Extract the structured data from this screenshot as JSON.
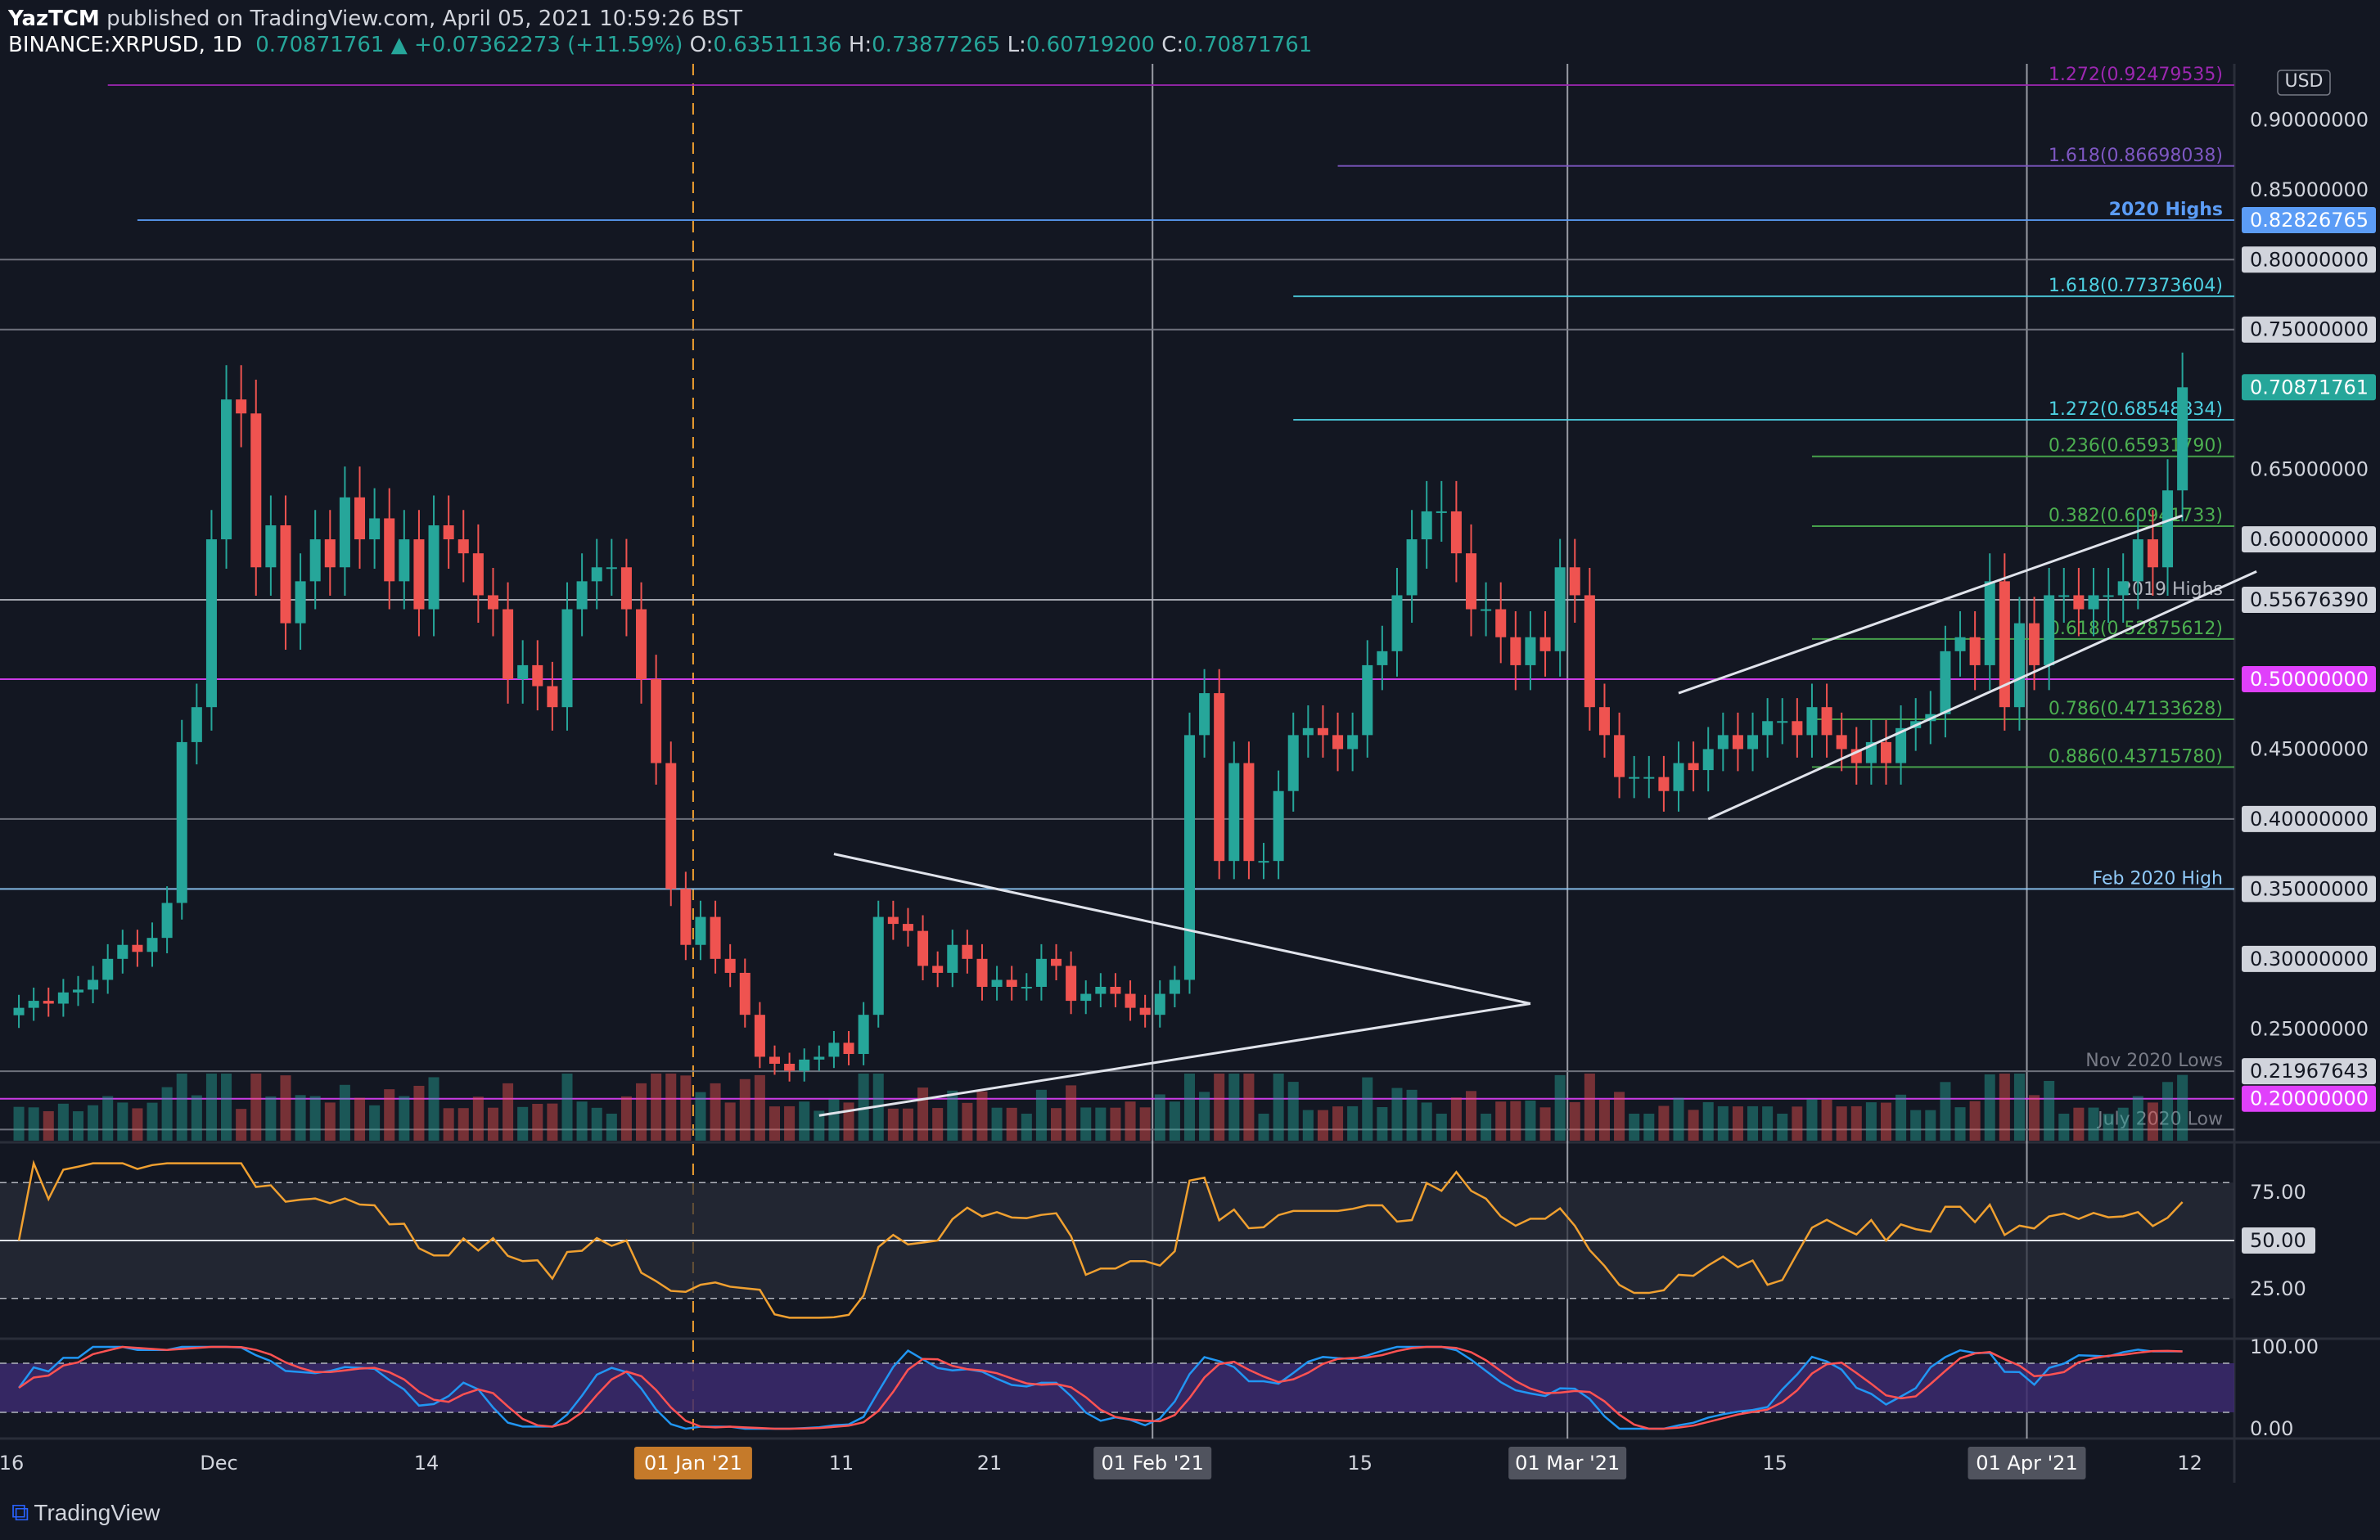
{
  "header": {
    "publisher": "YazTCM",
    "published_text": " published on TradingView.com, April 05, 2021 10:59:26 BST",
    "symbol": "BINANCE:XRPUSD, 1D",
    "last": "0.70871761",
    "change": "▲ +0.07362273 (+11.59%)",
    "o_label": "O:",
    "o": "0.63511136",
    "h_label": "H:",
    "h": "0.73877265",
    "l_label": "L:",
    "l": "0.60719200",
    "c_label": "C:",
    "c": "0.70871761"
  },
  "footer": {
    "brand": "TradingView",
    "logo_icon": "tradingview-logo-icon"
  },
  "colors": {
    "bg": "#131722",
    "up": "#26a69a",
    "down": "#ef5350",
    "rsi": "#f0a030",
    "stoch_k": "#2196f3",
    "stoch_d": "#ff5252"
  },
  "chart_data": {
    "type": "candlestick",
    "currency_label": "USD",
    "price_range": [
      0.17,
      0.94
    ],
    "price_ticks": [
      "0.25000000",
      "0.30000000",
      "0.45000000",
      "0.65000000",
      "0.85000000",
      "0.90000000"
    ],
    "x_labels": [
      {
        "label": "16",
        "day": 0
      },
      {
        "label": "Dec",
        "day": 14
      },
      {
        "label": "14",
        "day": 28
      },
      {
        "label": "01 Jan '21",
        "day": 46,
        "highlight": "orange"
      },
      {
        "label": "11",
        "day": 56
      },
      {
        "label": "21",
        "day": 66
      },
      {
        "label": "01 Feb '21",
        "day": 77,
        "highlight": "grey"
      },
      {
        "label": "15",
        "day": 91
      },
      {
        "label": "01 Mar '21",
        "day": 105,
        "highlight": "grey"
      },
      {
        "label": "15",
        "day": 119
      },
      {
        "label": "01 Apr '21",
        "day": 136,
        "highlight": "grey"
      },
      {
        "label": "12",
        "day": 147
      }
    ],
    "levels": [
      {
        "price": 0.92479535,
        "label": "1.272(0.92479535)",
        "color": "#9c27b0",
        "start": 6
      },
      {
        "price": 0.86698038,
        "label": "1.618(0.86698038)",
        "color": "#7e57c2",
        "start": 89
      },
      {
        "price": 0.82826765,
        "label": "2020 Highs",
        "color": "#5b9cf6",
        "start": 8,
        "tag": "0.82826765",
        "tagbg": "#5b9cf6"
      },
      {
        "price": 0.8,
        "label": "",
        "color": "#787b86",
        "start": 0,
        "tag": "0.80000000",
        "tagbg": "#d1d4dc"
      },
      {
        "price": 0.77373604,
        "label": "1.618(0.77373604)",
        "color": "#4dd0e1",
        "start": 86
      },
      {
        "price": 0.75,
        "label": "",
        "color": "#787b86",
        "start": 0,
        "tag": "0.75000000",
        "tagbg": "#d1d4dc"
      },
      {
        "price": 0.68548834,
        "label": "1.272(0.68548834)",
        "color": "#4dd0e1",
        "start": 86
      },
      {
        "price": 0.6593179,
        "label": "0.236(0.65931790)",
        "color": "#4caf50",
        "start": 121
      },
      {
        "price": 0.60941733,
        "label": "0.382(0.60941733)",
        "color": "#4caf50",
        "start": 121
      },
      {
        "price": 0.6,
        "label": "",
        "color": "none",
        "start": 0,
        "tag": "0.60000000",
        "tagbg": "#d1d4dc"
      },
      {
        "price": 0.5567639,
        "label": "2019 Highs",
        "color": "#b2b5be",
        "start": 0,
        "tag": "0.55676390",
        "tagbg": "#d1d4dc"
      },
      {
        "price": 0.52875612,
        "label": "0.618(0.52875612)",
        "color": "#4caf50",
        "start": 121
      },
      {
        "price": 0.5,
        "label": "",
        "color": "#e040fb",
        "start": 0,
        "tag": "0.50000000",
        "tagbg": "#e040fb"
      },
      {
        "price": 0.47133628,
        "label": "0.786(0.47133628)",
        "color": "#4caf50",
        "start": 121
      },
      {
        "price": 0.4371578,
        "label": "0.886(0.43715780)",
        "color": "#4caf50",
        "start": 121
      },
      {
        "price": 0.4,
        "label": "",
        "color": "#787b86",
        "start": 0,
        "tag": "0.40000000",
        "tagbg": "#d1d4dc"
      },
      {
        "price": 0.35,
        "label": "Feb 2020 High",
        "color": "#90caf9",
        "start": 0,
        "tag": "0.35000000",
        "tagbg": "#d1d4dc"
      },
      {
        "price": 0.3,
        "label": "",
        "color": "none",
        "start": 0,
        "tag": "0.30000000",
        "tagbg": "#d1d4dc"
      },
      {
        "price": 0.21967643,
        "label": "Nov 2020 Lows",
        "color": "#787b86",
        "start": 0,
        "tag": "0.21967643",
        "tagbg": "#d1d4dc"
      },
      {
        "price": 0.2,
        "label": "",
        "color": "#e040fb",
        "start": 0,
        "tag": "0.20000000",
        "tagbg": "#e040fb"
      },
      {
        "price": 0.178,
        "label": "July 2020 Low",
        "color": "#787b86",
        "start": 0
      }
    ],
    "last_price_tag": "0.70871761",
    "close": [
      0.265,
      0.27,
      0.268,
      0.276,
      0.278,
      0.285,
      0.3,
      0.31,
      0.305,
      0.315,
      0.34,
      0.455,
      0.48,
      0.6,
      0.7,
      0.69,
      0.58,
      0.61,
      0.54,
      0.57,
      0.6,
      0.58,
      0.63,
      0.6,
      0.615,
      0.57,
      0.6,
      0.55,
      0.61,
      0.6,
      0.59,
      0.56,
      0.55,
      0.5,
      0.51,
      0.495,
      0.48,
      0.55,
      0.57,
      0.58,
      0.58,
      0.55,
      0.5,
      0.44,
      0.35,
      0.31,
      0.33,
      0.3,
      0.29,
      0.26,
      0.23,
      0.225,
      0.22,
      0.228,
      0.23,
      0.24,
      0.232,
      0.26,
      0.33,
      0.325,
      0.32,
      0.295,
      0.29,
      0.31,
      0.3,
      0.28,
      0.285,
      0.28,
      0.28,
      0.3,
      0.295,
      0.27,
      0.275,
      0.28,
      0.275,
      0.265,
      0.26,
      0.275,
      0.285,
      0.46,
      0.49,
      0.37,
      0.44,
      0.37,
      0.37,
      0.42,
      0.46,
      0.465,
      0.46,
      0.45,
      0.46,
      0.51,
      0.52,
      0.56,
      0.6,
      0.62,
      0.62,
      0.59,
      0.55,
      0.55,
      0.53,
      0.51,
      0.53,
      0.52,
      0.58,
      0.56,
      0.48,
      0.46,
      0.43,
      0.43,
      0.43,
      0.42,
      0.44,
      0.435,
      0.45,
      0.46,
      0.45,
      0.46,
      0.47,
      0.47,
      0.46,
      0.48,
      0.46,
      0.45,
      0.44,
      0.455,
      0.44,
      0.465,
      0.47,
      0.475,
      0.52,
      0.53,
      0.51,
      0.57,
      0.48,
      0.54,
      0.51,
      0.56,
      0.56,
      0.55,
      0.56,
      0.56,
      0.57,
      0.6,
      0.58,
      0.635,
      0.7087
    ],
    "indicators": {
      "rsi": {
        "ticks": [
          "75.00",
          "50.00",
          "25.00"
        ],
        "bands": [
          80,
          20
        ],
        "midline": 50
      },
      "stoch_rsi": {
        "ticks": [
          "100.00",
          "0.00"
        ],
        "bands": [
          80,
          20
        ]
      }
    }
  }
}
